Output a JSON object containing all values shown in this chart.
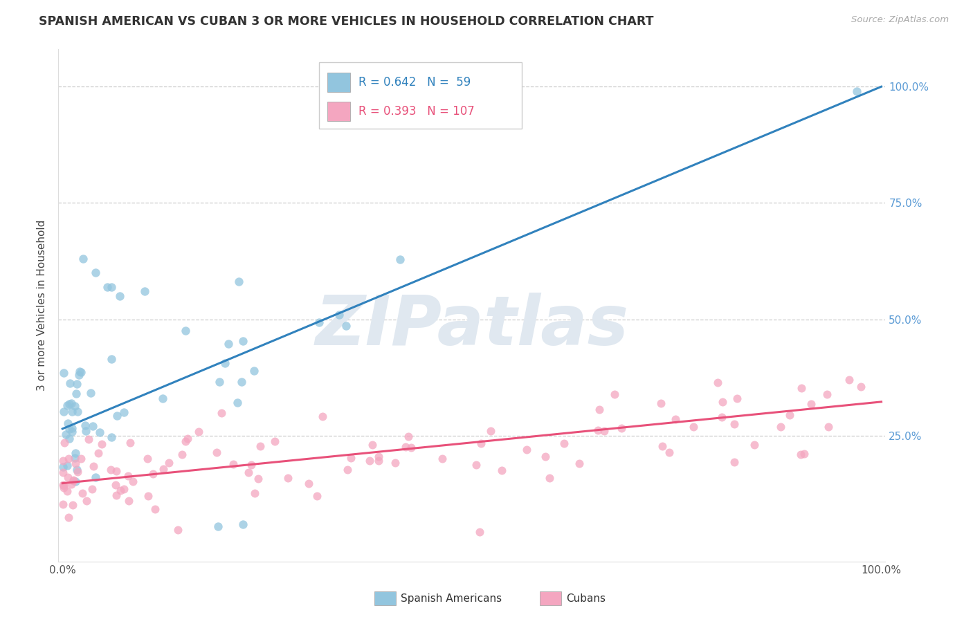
{
  "title": "SPANISH AMERICAN VS CUBAN 3 OR MORE VEHICLES IN HOUSEHOLD CORRELATION CHART",
  "source": "Source: ZipAtlas.com",
  "ylabel": "3 or more Vehicles in Household",
  "legend_label1": "Spanish Americans",
  "legend_label2": "Cubans",
  "R1": 0.642,
  "N1": 59,
  "R2": 0.393,
  "N2": 107,
  "color1": "#92c5de",
  "color2": "#f4a6c0",
  "line_color1": "#3182bd",
  "line_color2": "#e8517a",
  "blue_intercept": 0.265,
  "blue_slope": 0.735,
  "pink_intercept": 0.148,
  "pink_slope": 0.175,
  "watermark_text": "ZIPatlas",
  "watermark_color": "#e0e8f0",
  "grid_color": "#cccccc",
  "right_tick_color": "#5b9bd5"
}
